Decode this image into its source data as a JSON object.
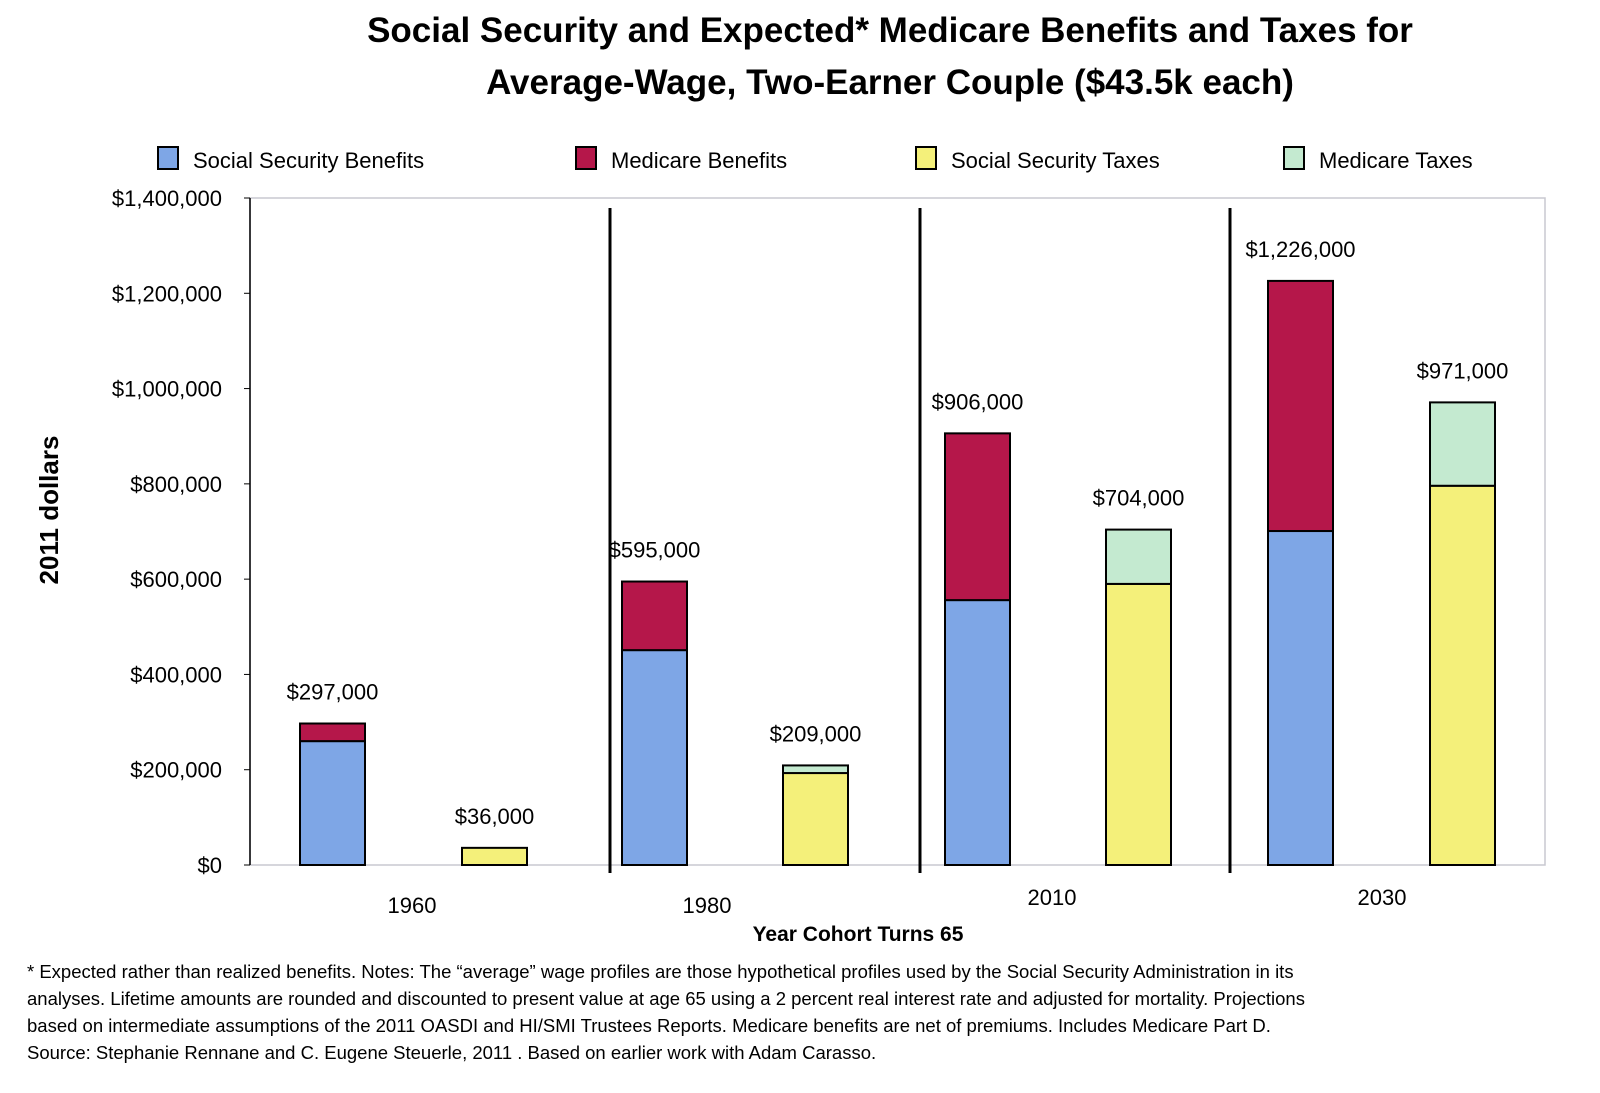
{
  "chart_data": {
    "type": "bar",
    "stacked": true,
    "title_lines": [
      "Social Security and Expected* Medicare Benefits and Taxes for",
      "Average-Wage, Two-Earner Couple ($43.5k each)"
    ],
    "xlabel": "Year Cohort Turns 65",
    "ylabel": "2011 dollars",
    "ylim": [
      0,
      1400000
    ],
    "yticks": [
      0,
      200000,
      400000,
      600000,
      800000,
      1000000,
      1200000,
      1400000
    ],
    "ytick_labels": [
      "$0",
      "$200,000",
      "$400,000",
      "$600,000",
      "$800,000",
      "$1,000,000",
      "$1,200,000",
      "$1,400,000"
    ],
    "categories": [
      "1960",
      "1980",
      "2010",
      "2030"
    ],
    "legend_position": "top",
    "grid": false,
    "series": [
      {
        "name": "Social Security Benefits",
        "color": "#7ea6e6",
        "stack": "benefits",
        "values": [
          260000,
          451000,
          556000,
          701000
        ]
      },
      {
        "name": "Medicare Benefits",
        "color": "#b5174a",
        "stack": "benefits",
        "values": [
          37000,
          144000,
          350000,
          525000
        ]
      },
      {
        "name": "Social Security Taxes",
        "color": "#f4f07a",
        "stack": "taxes",
        "values": [
          36000,
          193000,
          590000,
          796000
        ]
      },
      {
        "name": "Medicare Taxes",
        "color": "#c4ead0",
        "stack": "taxes",
        "values": [
          0,
          16000,
          114000,
          175000
        ]
      }
    ],
    "total_labels": {
      "benefits": [
        "$297,000",
        "$595,000",
        "$906,000",
        "$1,226,000"
      ],
      "taxes": [
        "$36,000",
        "$209,000",
        "$704,000",
        "$971,000"
      ]
    }
  },
  "footnote": [
    "* Expected rather than realized benefits.  Notes: The “average” wage profiles are those hypothetical profiles used by the Social Security Administration in its",
    "analyses. Lifetime amounts are rounded and discounted to present value at age 65 using a 2 percent real interest rate and adjusted for mortality.  Projections",
    "based on intermediate assumptions of the 2011 OASDI and HI/SMI Trustees Reports.  Medicare benefits are net of premiums. Includes Medicare Part D.",
    "Source: Stephanie Rennane and C. Eugene Steuerle, 2011 . Based on earlier work with Adam Carasso."
  ]
}
